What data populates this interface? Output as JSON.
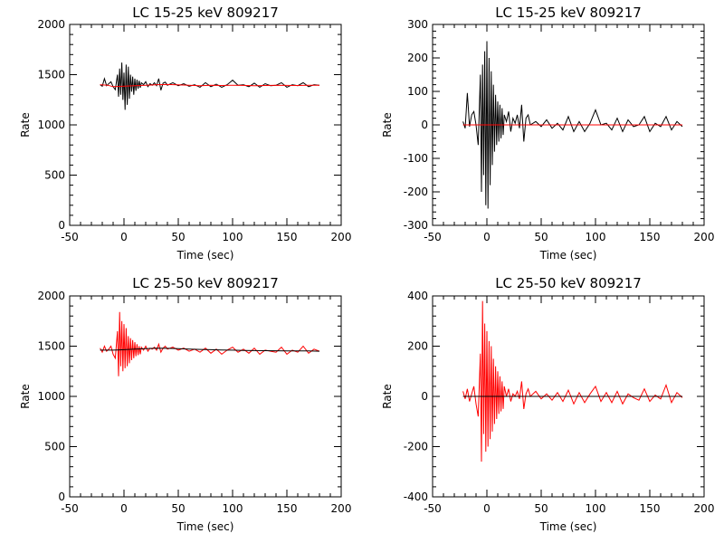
{
  "chart_data": [
    {
      "type": "line",
      "title": "LC 15-25 keV  809217",
      "xlabel": "Time (sec)",
      "ylabel": "Rate",
      "xlim": [
        -50,
        200
      ],
      "ylim": [
        0,
        2000
      ],
      "xticks": [
        -50,
        0,
        50,
        100,
        150,
        200
      ],
      "yticks": [
        0,
        500,
        1000,
        1500,
        2000
      ],
      "series": [
        {
          "color": "#000000",
          "x": [
            -22,
            -20,
            -18,
            -16,
            -14,
            -12,
            -10,
            -8,
            -6,
            -5,
            -4,
            -3,
            -2,
            -1,
            0,
            1,
            2,
            3,
            4,
            5,
            6,
            7,
            8,
            9,
            10,
            11,
            12,
            13,
            14,
            15,
            16,
            18,
            20,
            22,
            24,
            26,
            28,
            30,
            32,
            34,
            36,
            38,
            40,
            45,
            50,
            55,
            60,
            65,
            70,
            75,
            80,
            85,
            90,
            95,
            100,
            105,
            110,
            115,
            120,
            125,
            130,
            135,
            140,
            145,
            150,
            155,
            160,
            165,
            170,
            175,
            180
          ],
          "y": [
            1400,
            1385,
            1460,
            1390,
            1410,
            1430,
            1380,
            1350,
            1500,
            1280,
            1560,
            1300,
            1620,
            1250,
            1520,
            1150,
            1600,
            1200,
            1580,
            1260,
            1500,
            1330,
            1480,
            1300,
            1460,
            1340,
            1450,
            1360,
            1440,
            1370,
            1420,
            1400,
            1430,
            1380,
            1410,
            1395,
            1420,
            1390,
            1460,
            1345,
            1415,
            1425,
            1395,
            1420,
            1390,
            1410,
            1385,
            1400,
            1375,
            1420,
            1380,
            1405,
            1375,
            1400,
            1445,
            1395,
            1400,
            1380,
            1415,
            1375,
            1410,
            1390,
            1395,
            1420,
            1375,
            1400,
            1390,
            1420,
            1380,
            1400,
            1395
          ]
        },
        {
          "color": "#ff0000",
          "x": [
            -22,
            -15,
            -10,
            0,
            10,
            20,
            30,
            40,
            50,
            60,
            70,
            80,
            90,
            100,
            110,
            120,
            130,
            140,
            150,
            160,
            170,
            180
          ],
          "y": [
            1400,
            1395,
            1380,
            1385,
            1390,
            1395,
            1400,
            1402,
            1398,
            1395,
            1390,
            1395,
            1392,
            1395,
            1393,
            1390,
            1392,
            1395,
            1393,
            1392,
            1395,
            1395
          ]
        }
      ]
    },
    {
      "type": "line",
      "title": "LC 15-25 keV  809217",
      "xlabel": "Time (sec)",
      "ylabel": "Rate",
      "xlim": [
        -50,
        200
      ],
      "ylim": [
        -300,
        300
      ],
      "xticks": [
        -50,
        0,
        50,
        100,
        150,
        200
      ],
      "yticks": [
        -300,
        -200,
        -100,
        0,
        100,
        200,
        300
      ],
      "series": [
        {
          "color": "#000000",
          "x": [
            -22,
            -20,
            -18,
            -16,
            -14,
            -12,
            -10,
            -8,
            -6,
            -5,
            -4,
            -3,
            -2,
            -1,
            0,
            1,
            2,
            3,
            4,
            5,
            6,
            7,
            8,
            9,
            10,
            11,
            12,
            13,
            14,
            15,
            16,
            18,
            20,
            22,
            24,
            26,
            28,
            30,
            32,
            34,
            36,
            38,
            40,
            45,
            50,
            55,
            60,
            65,
            70,
            75,
            80,
            85,
            90,
            95,
            100,
            105,
            110,
            115,
            120,
            125,
            130,
            135,
            140,
            145,
            150,
            155,
            160,
            165,
            170,
            175,
            180
          ],
          "y": [
            10,
            -10,
            95,
            -5,
            30,
            40,
            0,
            -60,
            150,
            -200,
            180,
            -150,
            220,
            -240,
            250,
            -250,
            200,
            -180,
            160,
            -120,
            120,
            -80,
            90,
            -60,
            70,
            -50,
            60,
            -40,
            50,
            -30,
            30,
            10,
            40,
            -20,
            20,
            5,
            30,
            -10,
            60,
            -50,
            20,
            30,
            0,
            10,
            -5,
            15,
            -10,
            5,
            -15,
            25,
            -20,
            10,
            -20,
            5,
            45,
            0,
            5,
            -15,
            20,
            -20,
            15,
            -5,
            0,
            25,
            -20,
            5,
            -5,
            25,
            -15,
            10,
            -5
          ]
        },
        {
          "color": "#ff0000",
          "x": [
            -22,
            180
          ],
          "y": [
            0,
            0
          ]
        }
      ]
    },
    {
      "type": "line",
      "title": "LC 25-50 keV  809217",
      "xlabel": "Time (sec)",
      "ylabel": "Rate",
      "xlim": [
        -50,
        200
      ],
      "ylim": [
        0,
        2000
      ],
      "xticks": [
        -50,
        0,
        50,
        100,
        150,
        200
      ],
      "yticks": [
        0,
        500,
        1000,
        1500,
        2000
      ],
      "series": [
        {
          "color": "#ff0000",
          "x": [
            -22,
            -20,
            -18,
            -16,
            -14,
            -12,
            -10,
            -8,
            -6,
            -5,
            -4,
            -3,
            -2,
            -1,
            0,
            1,
            2,
            3,
            4,
            5,
            6,
            7,
            8,
            9,
            10,
            11,
            12,
            13,
            14,
            15,
            16,
            18,
            20,
            22,
            24,
            26,
            28,
            30,
            32,
            34,
            36,
            38,
            40,
            45,
            50,
            55,
            60,
            65,
            70,
            75,
            80,
            85,
            90,
            95,
            100,
            105,
            110,
            115,
            120,
            125,
            130,
            135,
            140,
            145,
            150,
            155,
            160,
            165,
            170,
            175,
            180
          ],
          "y": [
            1480,
            1440,
            1500,
            1450,
            1470,
            1500,
            1420,
            1380,
            1650,
            1200,
            1840,
            1300,
            1750,
            1250,
            1720,
            1280,
            1680,
            1300,
            1600,
            1330,
            1580,
            1360,
            1560,
            1380,
            1540,
            1400,
            1520,
            1410,
            1500,
            1420,
            1490,
            1460,
            1500,
            1450,
            1480,
            1470,
            1490,
            1460,
            1520,
            1440,
            1480,
            1500,
            1470,
            1490,
            1460,
            1480,
            1450,
            1470,
            1440,
            1480,
            1430,
            1470,
            1420,
            1460,
            1490,
            1440,
            1470,
            1430,
            1480,
            1420,
            1460,
            1450,
            1440,
            1490,
            1420,
            1460,
            1440,
            1500,
            1430,
            1470,
            1450
          ]
        },
        {
          "color": "#000000",
          "x": [
            -22,
            -10,
            0,
            10,
            20,
            30,
            40,
            50,
            60,
            70,
            80,
            90,
            100,
            110,
            120,
            130,
            140,
            150,
            160,
            170,
            180
          ],
          "y": [
            1460,
            1460,
            1465,
            1470,
            1475,
            1480,
            1478,
            1475,
            1470,
            1468,
            1465,
            1462,
            1460,
            1458,
            1456,
            1455,
            1454,
            1453,
            1452,
            1452,
            1450
          ]
        }
      ]
    },
    {
      "type": "line",
      "title": "LC 25-50 keV  809217",
      "xlabel": "Time (sec)",
      "ylabel": "Rate",
      "xlim": [
        -50,
        200
      ],
      "ylim": [
        -400,
        400
      ],
      "xticks": [
        -50,
        0,
        50,
        100,
        150,
        200
      ],
      "yticks": [
        -400,
        -200,
        0,
        200,
        400
      ],
      "series": [
        {
          "color": "#ff0000",
          "x": [
            -22,
            -20,
            -18,
            -16,
            -14,
            -12,
            -10,
            -8,
            -6,
            -5,
            -4,
            -3,
            -2,
            -1,
            0,
            1,
            2,
            3,
            4,
            5,
            6,
            7,
            8,
            9,
            10,
            11,
            12,
            13,
            14,
            15,
            16,
            18,
            20,
            22,
            24,
            26,
            28,
            30,
            32,
            34,
            36,
            38,
            40,
            45,
            50,
            55,
            60,
            65,
            70,
            75,
            80,
            85,
            90,
            95,
            100,
            105,
            110,
            115,
            120,
            125,
            130,
            135,
            140,
            145,
            150,
            155,
            160,
            165,
            170,
            175,
            180
          ],
          "y": [
            20,
            -10,
            30,
            -20,
            10,
            40,
            -30,
            -80,
            170,
            -260,
            380,
            -150,
            290,
            -220,
            260,
            -200,
            220,
            -170,
            200,
            -140,
            150,
            -110,
            120,
            -90,
            100,
            -70,
            80,
            -60,
            60,
            -50,
            40,
            0,
            30,
            -20,
            10,
            0,
            20,
            -10,
            60,
            -50,
            10,
            30,
            0,
            20,
            -10,
            10,
            -15,
            15,
            -20,
            25,
            -30,
            15,
            -25,
            10,
            40,
            -20,
            15,
            -25,
            20,
            -30,
            10,
            -5,
            -15,
            30,
            -20,
            5,
            -10,
            45,
            -25,
            15,
            -5
          ]
        },
        {
          "color": "#000000",
          "x": [
            -22,
            180
          ],
          "y": [
            0,
            0
          ]
        }
      ]
    }
  ]
}
